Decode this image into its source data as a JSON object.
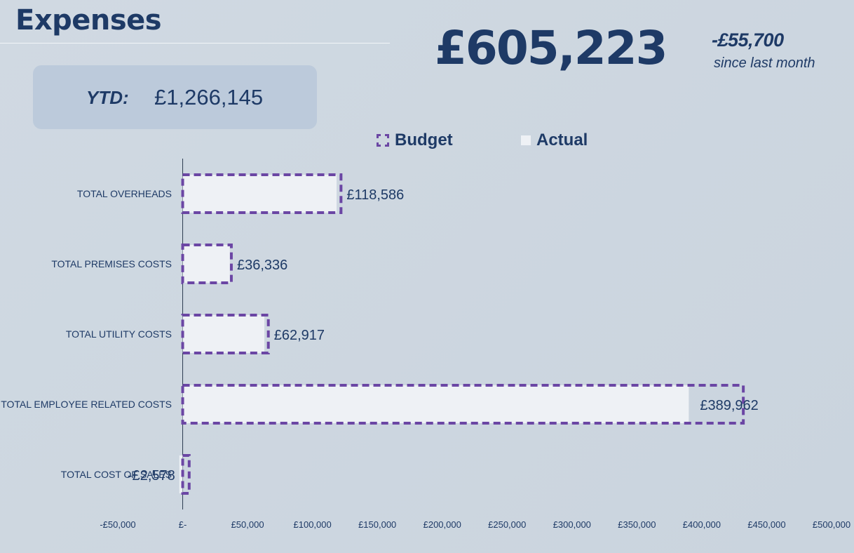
{
  "header": {
    "title": "Expenses",
    "ytd_label": "YTD:",
    "ytd_value": "£1,266,145",
    "total": "£605,223",
    "delta": "-£55,700",
    "delta_caption": "since last month"
  },
  "colors": {
    "budget_border": "#6b46a4",
    "actual_fill": "#eef1f5",
    "text": "#1e3a66"
  },
  "chart_data": {
    "type": "bar",
    "orientation": "horizontal",
    "categories": [
      "TOTAL OVERHEADS",
      "TOTAL PREMISES COSTS",
      "TOTAL UTILITY COSTS",
      "TOTAL EMPLOYEE RELATED COSTS",
      "TOTAL COST OF SALES"
    ],
    "series": [
      {
        "name": "Budget",
        "values": [
          122000,
          37500,
          66000,
          432000,
          5000
        ]
      },
      {
        "name": "Actual",
        "values": [
          118586,
          36336,
          62917,
          389962,
          -2578
        ]
      }
    ],
    "data_labels": [
      "£118,586",
      "£36,336",
      "£62,917",
      "£389,962",
      "-£2,578"
    ],
    "xlim": [
      -50000,
      500000
    ],
    "x_ticks": [
      -50000,
      0,
      50000,
      100000,
      150000,
      200000,
      250000,
      300000,
      350000,
      400000,
      450000,
      500000
    ],
    "x_tick_labels": [
      "-£50,000",
      "£-",
      "£50,000",
      "£100,000",
      "£150,000",
      "£200,000",
      "£250,000",
      "£300,000",
      "£350,000",
      "£400,000",
      "£450,000",
      "£500,000"
    ],
    "legend_position": "top",
    "grid": false
  }
}
